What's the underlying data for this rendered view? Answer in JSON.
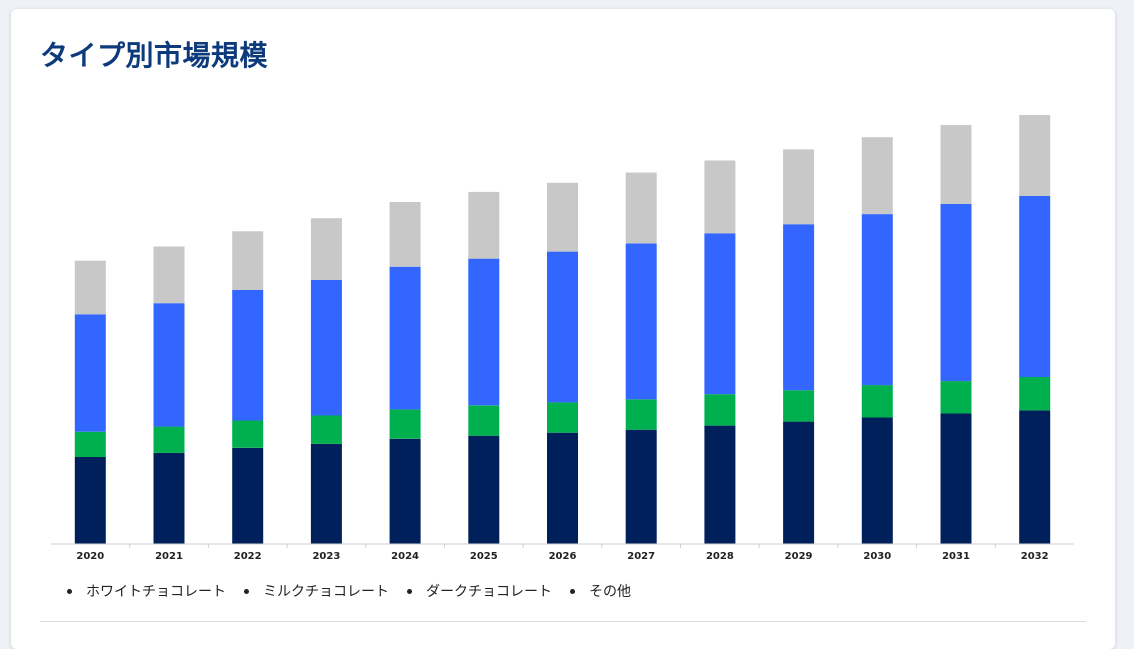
{
  "title": "タイプ別市場規模",
  "colors": {
    "white_chocolate": "#00205b",
    "milk_chocolate": "#00b04f",
    "dark_chocolate": "#3366ff",
    "others": "#c8c8c8",
    "title": "#0d3a7d"
  },
  "chart_data": {
    "type": "bar",
    "stacked": true,
    "title": "タイプ別市場規模",
    "xlabel": "",
    "ylabel": "",
    "grid": false,
    "legend_position": "bottom-left",
    "categories": [
      "2020",
      "2021",
      "2022",
      "2023",
      "2024",
      "2025",
      "2026",
      "2027",
      "2028",
      "2029",
      "2030",
      "2031",
      "2032"
    ],
    "ylim": [
      0,
      420
    ],
    "series": [
      {
        "name": "ホワイトチョコレート",
        "color": "#00205b",
        "values": [
          86,
          90,
          95,
          99,
          104,
          107,
          110,
          113,
          117,
          121,
          125,
          129,
          132
        ]
      },
      {
        "name": "ミルクチョコレート",
        "color": "#00b04f",
        "values": [
          25,
          26,
          27,
          28,
          29,
          30,
          30,
          30,
          31,
          31,
          32,
          32,
          33
        ]
      },
      {
        "name": "ダークチョコレート",
        "color": "#3366ff",
        "values": [
          116,
          122,
          129,
          134,
          141,
          145,
          149,
          154,
          159,
          164,
          169,
          175,
          179
        ]
      },
      {
        "name": "その他",
        "color": "#c8c8c8",
        "values": [
          53,
          56,
          58,
          61,
          64,
          66,
          68,
          70,
          72,
          74,
          76,
          78,
          80
        ]
      }
    ]
  }
}
